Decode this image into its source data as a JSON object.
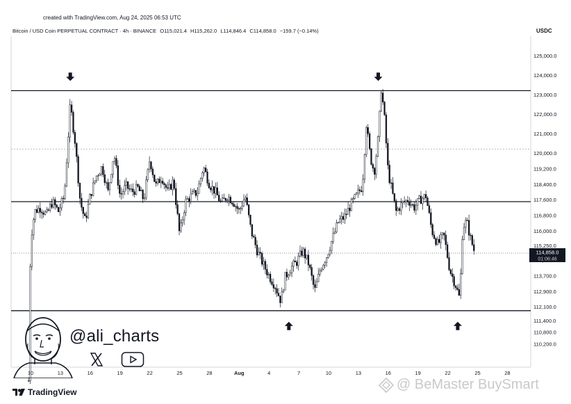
{
  "created_note": "created with TradingView.com, Aug 24, 2025 06:53 UTC",
  "header": {
    "symbol": "Bitcoin / USD Coin PERPETUAL CONTRACT · 4h · BINANCE",
    "open": "O115,021.4",
    "high": "H115,262.0",
    "low": "L114,846.4",
    "close": "C114,858.0",
    "change": "−159.7 (−0.14%)"
  },
  "currency": "USDC",
  "price_tag": {
    "price": "114,858.0",
    "countdown": "01:06:46",
    "value": 114858
  },
  "brand": "TradingView",
  "handle": "@ali_charts",
  "watermark": "@ BeMaster BuySmart",
  "social_icons": [
    "x-icon",
    "youtube-icon"
  ],
  "colors": {
    "candles": "#131722",
    "lines": "#131722",
    "grid": "#bcbcbc",
    "background": "#ffffff",
    "price_tag_bg": "#131722"
  },
  "chart_data": {
    "type": "candlestick",
    "interval": "4h",
    "x_ticks": [
      "10",
      "13",
      "16",
      "19",
      "22",
      "25",
      "28",
      "Aug",
      "4",
      "7",
      "10",
      "13",
      "16",
      "19",
      "22",
      "25",
      "28"
    ],
    "y_ticks": [
      125000,
      124000,
      123000,
      122000,
      121000,
      120000,
      119200,
      118400,
      117600,
      116800,
      116000,
      115250,
      114500,
      113700,
      112900,
      112100,
      111400,
      110800,
      110200
    ],
    "y_tick_labels": [
      "125,000.0",
      "124,000.0",
      "123,000.0",
      "122,000.0",
      "121,000.0",
      "120,000.0",
      "119,200.0",
      "118,400.0",
      "117,600.0",
      "116,800.0",
      "116,000.0",
      "115,250.0",
      "114,500.0",
      "113,700.0",
      "112,900.0",
      "112,100.0",
      "111,400.0",
      "110,800.0",
      "110,200.0"
    ],
    "horizontal_levels": [
      123200,
      117500,
      111900
    ],
    "dotted_levels": [
      120200
    ],
    "arrows": [
      {
        "direction": "down",
        "day": 14,
        "price": 123200
      },
      {
        "direction": "down",
        "day": 45,
        "price": 123200
      },
      {
        "direction": "up",
        "day": 36,
        "price": 111900
      },
      {
        "direction": "up",
        "day": 53,
        "price": 111900
      }
    ],
    "close_path": [
      [
        9.8,
        108300
      ],
      [
        10.0,
        115500
      ],
      [
        10.4,
        117000
      ],
      [
        11.0,
        117200
      ],
      [
        11.6,
        116800
      ],
      [
        12.2,
        117500
      ],
      [
        12.8,
        117000
      ],
      [
        13.4,
        117800
      ],
      [
        14.0,
        122500
      ],
      [
        14.5,
        120500
      ],
      [
        15.0,
        117500
      ],
      [
        15.5,
        116500
      ],
      [
        16.0,
        117800
      ],
      [
        16.6,
        118800
      ],
      [
        17.2,
        119300
      ],
      [
        17.8,
        118000
      ],
      [
        18.4,
        120000
      ],
      [
        19.0,
        117800
      ],
      [
        19.6,
        118300
      ],
      [
        20.2,
        118000
      ],
      [
        20.8,
        118200
      ],
      [
        21.4,
        117600
      ],
      [
        22.0,
        119700
      ],
      [
        22.6,
        118300
      ],
      [
        23.2,
        118800
      ],
      [
        23.8,
        118000
      ],
      [
        24.4,
        118600
      ],
      [
        25.0,
        115800
      ],
      [
        25.6,
        117500
      ],
      [
        26.2,
        117800
      ],
      [
        26.8,
        118000
      ],
      [
        27.4,
        119300
      ],
      [
        28.0,
        118400
      ],
      [
        28.6,
        118000
      ],
      [
        29.2,
        117400
      ],
      [
        29.8,
        117800
      ],
      [
        30.4,
        117500
      ],
      [
        31.0,
        117000
      ],
      [
        31.6,
        117800
      ],
      [
        32.2,
        116000
      ],
      [
        32.8,
        115000
      ],
      [
        33.4,
        114300
      ],
      [
        34.0,
        113700
      ],
      [
        34.6,
        113200
      ],
      [
        35.2,
        112400
      ],
      [
        35.6,
        113600
      ],
      [
        36.2,
        114100
      ],
      [
        36.8,
        114400
      ],
      [
        37.4,
        115000
      ],
      [
        38.0,
        114300
      ],
      [
        38.6,
        112900
      ],
      [
        39.2,
        114100
      ],
      [
        39.8,
        114700
      ],
      [
        40.4,
        115600
      ],
      [
        41.0,
        116500
      ],
      [
        41.6,
        116700
      ],
      [
        42.2,
        117300
      ],
      [
        42.8,
        117800
      ],
      [
        43.4,
        118300
      ],
      [
        43.8,
        121500
      ],
      [
        44.2,
        119800
      ],
      [
        44.6,
        119000
      ],
      [
        45.0,
        120800
      ],
      [
        45.3,
        123300
      ],
      [
        45.6,
        122000
      ],
      [
        46.0,
        119000
      ],
      [
        46.4,
        118000
      ],
      [
        46.8,
        117000
      ],
      [
        47.4,
        117400
      ],
      [
        48.0,
        117600
      ],
      [
        48.6,
        117200
      ],
      [
        49.2,
        117600
      ],
      [
        49.8,
        117800
      ],
      [
        50.4,
        116000
      ],
      [
        51.0,
        115300
      ],
      [
        51.6,
        115800
      ],
      [
        52.2,
        114000
      ],
      [
        52.8,
        113200
      ],
      [
        53.2,
        112500
      ],
      [
        53.5,
        116200
      ],
      [
        53.9,
        116500
      ],
      [
        54.3,
        115600
      ],
      [
        54.7,
        114900
      ]
    ]
  }
}
